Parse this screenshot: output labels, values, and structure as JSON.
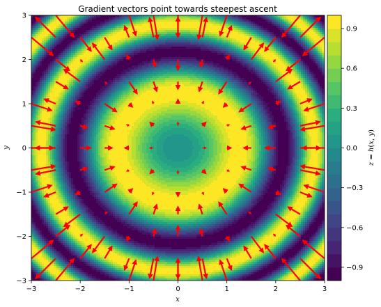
{
  "chart_data": {
    "type": "contour_with_quiver",
    "title": "Gradient vectors point towards steepest ascent",
    "xlabel": "x",
    "ylabel": "y",
    "xlim": [
      -3,
      3
    ],
    "ylim": [
      -3,
      3
    ],
    "xticks": [
      "−3",
      "−2",
      "−1",
      "0",
      "1",
      "2",
      "3"
    ],
    "yticks": [
      "−3",
      "−2",
      "−1",
      "0",
      "1",
      "2",
      "3"
    ],
    "colorbar": {
      "label": "z = h(x, y)",
      "label_parts": [
        "z",
        " = ",
        "h",
        "(",
        "x",
        ", ",
        "y",
        ")"
      ],
      "ticks": [
        "0.9",
        "0.6",
        "0.3",
        "0.0",
        "−0.3",
        "−0.6",
        "−0.9"
      ],
      "tick_values": [
        0.9,
        0.6,
        0.3,
        0.0,
        -0.3,
        -0.6,
        -0.9
      ],
      "range": [
        -1,
        1
      ],
      "levels": 20,
      "colormap": "viridis"
    },
    "function": "h(x, y) = sin(x^2 + y^2)",
    "quiver": {
      "color": "#ff0000",
      "grid_x": [
        -3,
        -2.5,
        -2,
        -1.5,
        -1,
        -0.5,
        0,
        0.5,
        1,
        1.5,
        2,
        2.5,
        3
      ],
      "grid_y": [
        -3,
        -2.5,
        -2,
        -1.5,
        -1,
        -0.5,
        0,
        0.5,
        1,
        1.5,
        2,
        2.5,
        3
      ],
      "vector_field": "grad h = (2x cos(x^2+y^2), 2y cos(x^2+y^2))"
    },
    "grid": false,
    "legend": "none"
  }
}
